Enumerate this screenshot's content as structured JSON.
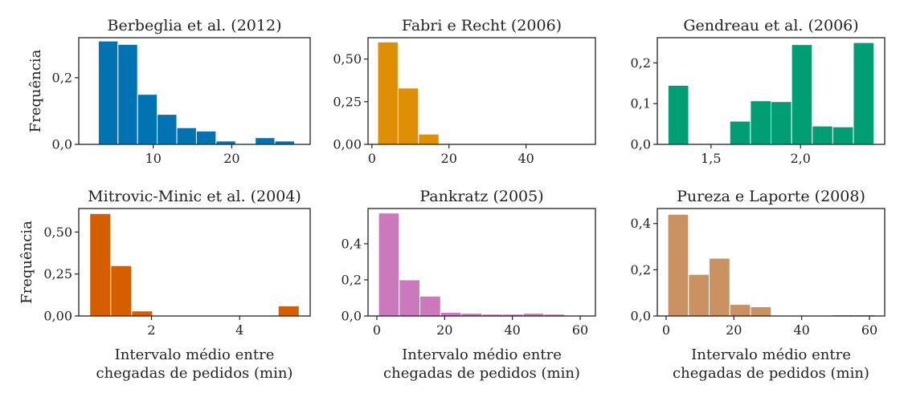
{
  "chart_data": [
    {
      "type": "bar",
      "title": "Berbeglia et al. (2012)",
      "color": "#0173b2",
      "ylabel": "Frequência",
      "xlabel": "",
      "bins": [
        [
          3.0,
          5.5
        ],
        [
          5.5,
          8.0
        ],
        [
          8.0,
          10.5
        ],
        [
          10.5,
          13.0
        ],
        [
          13.0,
          15.5
        ],
        [
          15.5,
          18.0
        ],
        [
          18.0,
          20.5
        ],
        [
          20.5,
          23.0
        ],
        [
          23.0,
          25.5
        ],
        [
          25.5,
          28.0
        ]
      ],
      "values": [
        0.31,
        0.3,
        0.15,
        0.09,
        0.05,
        0.04,
        0.01,
        0.0,
        0.02,
        0.01
      ],
      "xlim": [
        0.5,
        30.0
      ],
      "ylim": [
        0,
        0.32
      ],
      "xticks": [
        {
          "v": 10,
          "label": "10"
        },
        {
          "v": 20,
          "label": "20"
        }
      ],
      "yticks": [
        {
          "v": 0,
          "label": "0,0"
        },
        {
          "v": 0.2,
          "label": "0,2"
        }
      ]
    },
    {
      "type": "bar",
      "title": "Fabri e Recht (2006)",
      "color": "#de8f05",
      "ylabel": "",
      "xlabel": "",
      "bins": [
        [
          1.5,
          6.8
        ],
        [
          6.8,
          12.1
        ],
        [
          12.1,
          17.4
        ],
        [
          17.4,
          22.7
        ],
        [
          22.7,
          28.0
        ],
        [
          28.0,
          33.3
        ],
        [
          33.3,
          38.6
        ],
        [
          38.6,
          43.9
        ],
        [
          43.9,
          49.2
        ],
        [
          49.2,
          54.5
        ]
      ],
      "values": [
        0.6,
        0.33,
        0.06,
        0,
        0,
        0,
        0,
        0,
        0,
        0
      ],
      "xlim": [
        -1.0,
        58.0
      ],
      "ylim": [
        0,
        0.625
      ],
      "xticks": [
        {
          "v": 0,
          "label": "0"
        },
        {
          "v": 20,
          "label": "20"
        },
        {
          "v": 40,
          "label": "40"
        }
      ],
      "yticks": [
        {
          "v": 0,
          "label": "0,00"
        },
        {
          "v": 0.25,
          "label": "0,25"
        },
        {
          "v": 0.5,
          "label": "0,50"
        }
      ]
    },
    {
      "type": "bar",
      "title": "Gendreau et al. (2006)",
      "color": "#029e73",
      "ylabel": "",
      "xlabel": "",
      "bins": [
        [
          1.26,
          1.375
        ],
        [
          1.375,
          1.49
        ],
        [
          1.49,
          1.605
        ],
        [
          1.605,
          1.72
        ],
        [
          1.72,
          1.835
        ],
        [
          1.835,
          1.95
        ],
        [
          1.95,
          2.065
        ],
        [
          2.065,
          2.18
        ],
        [
          2.18,
          2.295
        ],
        [
          2.295,
          2.41
        ]
      ],
      "values": [
        0.145,
        0,
        0,
        0.057,
        0.107,
        0.105,
        0.245,
        0.045,
        0.043,
        0.25
      ],
      "xlim": [
        1.2,
        2.47
      ],
      "ylim": [
        0,
        0.262
      ],
      "xticks": [
        {
          "v": 1.5,
          "label": "1,5"
        },
        {
          "v": 2.0,
          "label": "2,0"
        }
      ],
      "yticks": [
        {
          "v": 0,
          "label": "0,0"
        },
        {
          "v": 0.1,
          "label": "0,1"
        },
        {
          "v": 0.2,
          "label": "0,2"
        }
      ]
    },
    {
      "type": "bar",
      "title": "Mitrovic-Minic et al. (2004)",
      "color": "#d55e00",
      "ylabel": "Frequência",
      "xlabel": "Intervalo médio entre\nchegadas de pedidos (min)",
      "bins": [
        [
          0.6,
          1.075
        ],
        [
          1.075,
          1.55
        ],
        [
          1.55,
          2.025
        ],
        [
          2.025,
          2.5
        ],
        [
          2.5,
          2.975
        ],
        [
          2.975,
          3.45
        ],
        [
          3.45,
          3.925
        ],
        [
          3.925,
          4.4
        ],
        [
          4.4,
          4.875
        ],
        [
          4.875,
          5.35
        ]
      ],
      "values": [
        0.61,
        0.3,
        0.03,
        0,
        0,
        0,
        0,
        0,
        0,
        0.06
      ],
      "xlim": [
        0.35,
        5.6
      ],
      "ylim": [
        0,
        0.64
      ],
      "xticks": [
        {
          "v": 2,
          "label": "2"
        },
        {
          "v": 4,
          "label": "4"
        }
      ],
      "yticks": [
        {
          "v": 0,
          "label": "0,00"
        },
        {
          "v": 0.25,
          "label": "0,25"
        },
        {
          "v": 0.5,
          "label": "0,50"
        }
      ]
    },
    {
      "type": "bar",
      "title": "Pankratz (2005)",
      "color": "#cc78bc",
      "ylabel": "",
      "xlabel": "Intervalo médio entre\nchegadas de pedidos (min)",
      "bins": [
        [
          0.5,
          6.6
        ],
        [
          6.6,
          12.7
        ],
        [
          12.7,
          18.8
        ],
        [
          18.8,
          24.9
        ],
        [
          24.9,
          31.0
        ],
        [
          31.0,
          37.1
        ],
        [
          37.1,
          43.2
        ],
        [
          43.2,
          49.3
        ],
        [
          49.3,
          55.4
        ],
        [
          55.4,
          61.5
        ]
      ],
      "values": [
        0.57,
        0.2,
        0.11,
        0.02,
        0.015,
        0.01,
        0.01,
        0.015,
        0.01,
        0
      ],
      "xlim": [
        -2.6,
        64.5
      ],
      "ylim": [
        0,
        0.595
      ],
      "xticks": [
        {
          "v": 0,
          "label": "0"
        },
        {
          "v": 20,
          "label": "20"
        },
        {
          "v": 40,
          "label": "40"
        },
        {
          "v": 60,
          "label": "60"
        }
      ],
      "yticks": [
        {
          "v": 0,
          "label": "0,0"
        },
        {
          "v": 0.2,
          "label": "0,2"
        },
        {
          "v": 0.4,
          "label": "0,4"
        }
      ]
    },
    {
      "type": "bar",
      "title": "Pureza e Laporte (2008)",
      "color": "#ca9161",
      "ylabel": "",
      "xlabel": "Intervalo médio entre\nchegadas de pedidos (min)",
      "bins": [
        [
          0.5,
          6.6
        ],
        [
          6.6,
          12.7
        ],
        [
          12.7,
          18.8
        ],
        [
          18.8,
          24.9
        ],
        [
          24.9,
          31.0
        ],
        [
          31.0,
          37.1
        ],
        [
          37.1,
          43.2
        ],
        [
          43.2,
          49.3
        ],
        [
          49.3,
          55.4
        ],
        [
          55.4,
          61.5
        ]
      ],
      "values": [
        0.44,
        0.18,
        0.25,
        0.05,
        0.04,
        0,
        0,
        0,
        0.005,
        0.005
      ],
      "xlim": [
        -2.6,
        64.5
      ],
      "ylim": [
        0,
        0.465
      ],
      "xticks": [
        {
          "v": 0,
          "label": "0"
        },
        {
          "v": 20,
          "label": "20"
        },
        {
          "v": 40,
          "label": "40"
        },
        {
          "v": 60,
          "label": "60"
        }
      ],
      "yticks": [
        {
          "v": 0,
          "label": "0,0"
        },
        {
          "v": 0.2,
          "label": "0,2"
        },
        {
          "v": 0.4,
          "label": "0,4"
        }
      ]
    }
  ]
}
